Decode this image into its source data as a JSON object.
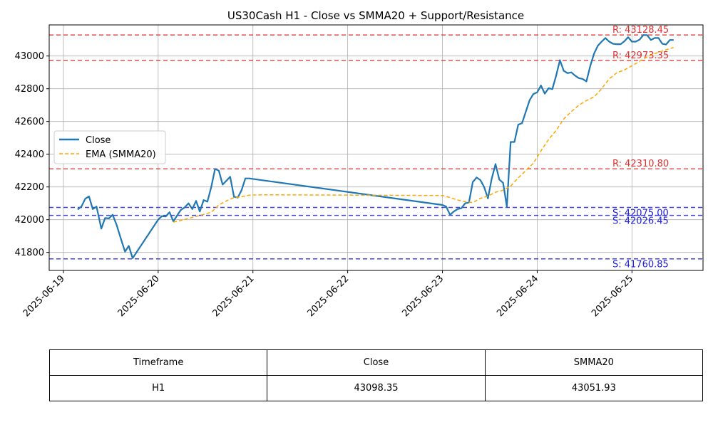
{
  "chart_data": {
    "type": "line",
    "title": "US30Cash H1 - Close vs SMMA20 + Support/Resistance",
    "xlabel": "",
    "ylabel": "",
    "x_tick_labels": [
      "2025-06-19",
      "2025-06-20",
      "2025-06-21",
      "2025-06-22",
      "2025-06-23",
      "2025-06-24",
      "2025-06-25"
    ],
    "xlim_days": [
      -0.15,
      6.75
    ],
    "ylim": [
      41690,
      43190
    ],
    "y_ticks": [
      41800,
      42000,
      42200,
      42400,
      42600,
      42800,
      43000
    ],
    "grid": true,
    "legend_position": "center-left",
    "series": [
      {
        "name": "Close",
        "color": "#1f77b4",
        "style": "solid",
        "points": [
          [
            0.15,
            42062
          ],
          [
            0.19,
            42080
          ],
          [
            0.23,
            42128
          ],
          [
            0.27,
            42142
          ],
          [
            0.31,
            42065
          ],
          [
            0.35,
            42080
          ],
          [
            0.4,
            41945
          ],
          [
            0.44,
            42010
          ],
          [
            0.48,
            42008
          ],
          [
            0.52,
            42030
          ],
          [
            0.56,
            41970
          ],
          [
            0.6,
            41895
          ],
          [
            0.65,
            41805
          ],
          [
            0.69,
            41840
          ],
          [
            0.73,
            41765
          ],
          [
            1.0,
            42000
          ],
          [
            1.04,
            42022
          ],
          [
            1.08,
            42020
          ],
          [
            1.12,
            42045
          ],
          [
            1.16,
            41990
          ],
          [
            1.2,
            42025
          ],
          [
            1.24,
            42060
          ],
          [
            1.28,
            42075
          ],
          [
            1.32,
            42100
          ],
          [
            1.36,
            42065
          ],
          [
            1.4,
            42115
          ],
          [
            1.44,
            42050
          ],
          [
            1.48,
            42120
          ],
          [
            1.52,
            42110
          ],
          [
            1.56,
            42200
          ],
          [
            1.6,
            42310
          ],
          [
            1.64,
            42300
          ],
          [
            1.68,
            42215
          ],
          [
            1.72,
            42238
          ],
          [
            1.76,
            42262
          ],
          [
            1.8,
            42140
          ],
          [
            1.84,
            42135
          ],
          [
            1.88,
            42180
          ],
          [
            1.92,
            42252
          ],
          [
            1.96,
            42252
          ],
          [
            4.0,
            42090
          ],
          [
            4.04,
            42080
          ],
          [
            4.08,
            42030
          ],
          [
            4.12,
            42050
          ],
          [
            4.16,
            42065
          ],
          [
            4.2,
            42070
          ],
          [
            4.24,
            42100
          ],
          [
            4.28,
            42105
          ],
          [
            4.32,
            42230
          ],
          [
            4.36,
            42258
          ],
          [
            4.4,
            42242
          ],
          [
            4.44,
            42200
          ],
          [
            4.48,
            42130
          ],
          [
            4.52,
            42250
          ],
          [
            4.56,
            42340
          ],
          [
            4.6,
            42245
          ],
          [
            4.64,
            42225
          ],
          [
            4.68,
            42080
          ],
          [
            4.72,
            42475
          ],
          [
            4.76,
            42475
          ],
          [
            4.8,
            42580
          ],
          [
            4.84,
            42590
          ],
          [
            4.88,
            42660
          ],
          [
            4.92,
            42730
          ],
          [
            4.96,
            42768
          ],
          [
            5.0,
            42778
          ],
          [
            5.04,
            42820
          ],
          [
            5.08,
            42770
          ],
          [
            5.12,
            42803
          ],
          [
            5.16,
            42798
          ],
          [
            5.2,
            42880
          ],
          [
            5.24,
            42975
          ],
          [
            5.28,
            42910
          ],
          [
            5.32,
            42895
          ],
          [
            5.36,
            42900
          ],
          [
            5.4,
            42880
          ],
          [
            5.44,
            42865
          ],
          [
            5.48,
            42860
          ],
          [
            5.52,
            42845
          ],
          [
            5.56,
            42940
          ],
          [
            5.6,
            43015
          ],
          [
            5.64,
            43063
          ],
          [
            5.68,
            43088
          ],
          [
            5.72,
            43110
          ],
          [
            5.76,
            43088
          ],
          [
            5.8,
            43075
          ],
          [
            5.84,
            43072
          ],
          [
            5.88,
            43072
          ],
          [
            5.92,
            43090
          ],
          [
            5.96,
            43115
          ],
          [
            6.0,
            43088
          ],
          [
            6.04,
            43088
          ],
          [
            6.08,
            43100
          ],
          [
            6.12,
            43128
          ],
          [
            6.16,
            43128
          ],
          [
            6.2,
            43098
          ],
          [
            6.24,
            43110
          ],
          [
            6.28,
            43110
          ],
          [
            6.32,
            43075
          ],
          [
            6.36,
            43070
          ],
          [
            6.4,
            43098
          ],
          [
            6.44,
            43098
          ]
        ]
      },
      {
        "name": "EMA (SMMA20)",
        "color": "#ffa500",
        "style": "dashed",
        "points": [
          [
            1.16,
            41985
          ],
          [
            1.24,
            41995
          ],
          [
            1.32,
            42008
          ],
          [
            1.4,
            42020
          ],
          [
            1.48,
            42032
          ],
          [
            1.56,
            42045
          ],
          [
            1.64,
            42090
          ],
          [
            1.72,
            42115
          ],
          [
            1.8,
            42135
          ],
          [
            1.88,
            42140
          ],
          [
            1.96,
            42150
          ],
          [
            2.1,
            42152
          ],
          [
            4.0,
            42148
          ],
          [
            4.08,
            42135
          ],
          [
            4.16,
            42120
          ],
          [
            4.24,
            42110
          ],
          [
            4.32,
            42105
          ],
          [
            4.4,
            42130
          ],
          [
            4.48,
            42145
          ],
          [
            4.56,
            42168
          ],
          [
            4.64,
            42180
          ],
          [
            4.72,
            42205
          ],
          [
            4.8,
            42255
          ],
          [
            4.88,
            42300
          ],
          [
            4.96,
            42345
          ],
          [
            5.04,
            42420
          ],
          [
            5.12,
            42490
          ],
          [
            5.2,
            42545
          ],
          [
            5.28,
            42615
          ],
          [
            5.36,
            42660
          ],
          [
            5.44,
            42700
          ],
          [
            5.52,
            42728
          ],
          [
            5.6,
            42750
          ],
          [
            5.68,
            42800
          ],
          [
            5.76,
            42860
          ],
          [
            5.84,
            42898
          ],
          [
            5.92,
            42915
          ],
          [
            6.0,
            42940
          ],
          [
            6.08,
            42968
          ],
          [
            6.16,
            42995
          ],
          [
            6.24,
            43015
          ],
          [
            6.32,
            43030
          ],
          [
            6.4,
            43045
          ],
          [
            6.44,
            43052
          ]
        ]
      }
    ],
    "levels": [
      {
        "kind": "resistance",
        "value": 43128.45,
        "label": "R: 43128.45",
        "color": "#e03030"
      },
      {
        "kind": "resistance",
        "value": 42973.35,
        "label": "R: 42973.35",
        "color": "#e03030"
      },
      {
        "kind": "resistance",
        "value": 42310.8,
        "label": "R: 42310.80",
        "color": "#e03030"
      },
      {
        "kind": "support",
        "value": 42075.0,
        "label": "S: 42075.00",
        "color": "#2020e0"
      },
      {
        "kind": "support",
        "value": 42026.45,
        "label": "S: 42026.45",
        "color": "#2020e0"
      },
      {
        "kind": "support",
        "value": 41760.85,
        "label": "S: 41760.85",
        "color": "#2020e0"
      }
    ]
  },
  "table": {
    "headers": [
      "Timeframe",
      "Close",
      "SMMA20"
    ],
    "row": [
      "H1",
      "43098.35",
      "43051.93"
    ]
  }
}
